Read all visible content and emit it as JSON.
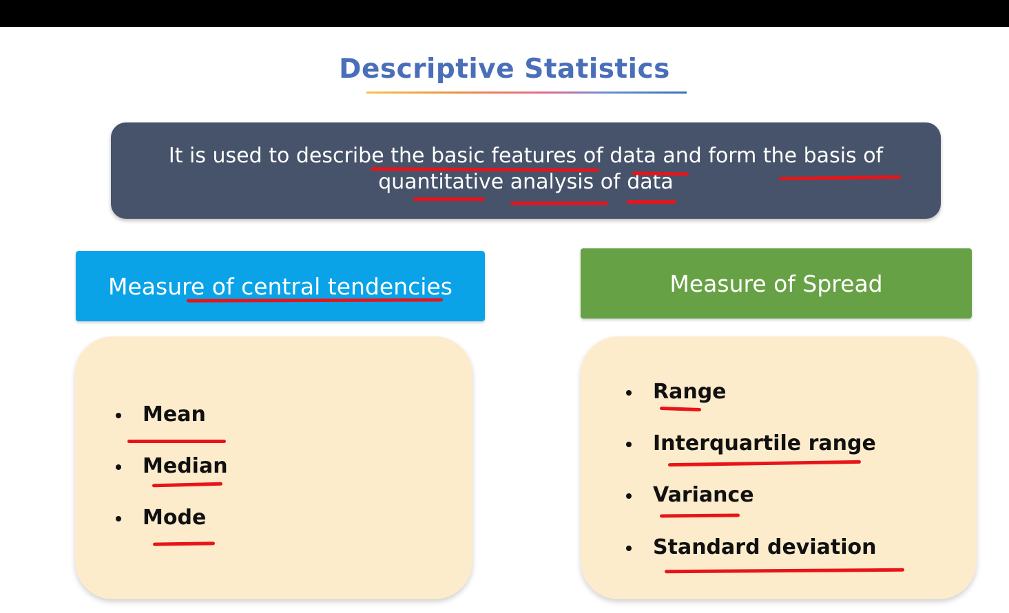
{
  "slide": {
    "title": "Descriptive Statistics",
    "definition": "It is used to describe the basic features of data and form the basis of quantitative analysis of data"
  },
  "central_tendency": {
    "header": "Measure of central tendencies",
    "items": [
      "Mean",
      "Median",
      "Mode"
    ],
    "header_color": "#0aa3e8"
  },
  "spread": {
    "header": "Measure of Spread",
    "items": [
      "Range",
      "Interquartile range",
      "Variance",
      "Standard deviation"
    ],
    "header_color": "#67a145"
  },
  "colors": {
    "title": "#4a6fb8",
    "definition_box": "#46536a",
    "card": "#fdeccb",
    "annotation": "#e8141a"
  }
}
